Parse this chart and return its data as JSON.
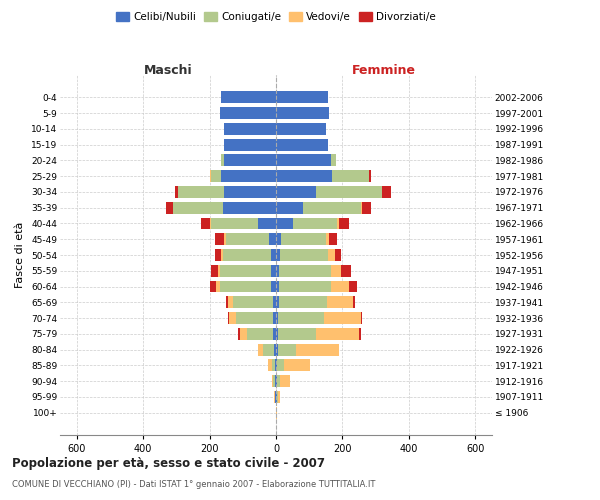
{
  "age_groups": [
    "100+",
    "95-99",
    "90-94",
    "85-89",
    "80-84",
    "75-79",
    "70-74",
    "65-69",
    "60-64",
    "55-59",
    "50-54",
    "45-49",
    "40-44",
    "35-39",
    "30-34",
    "25-29",
    "20-24",
    "15-19",
    "10-14",
    "5-9",
    "0-4"
  ],
  "birth_years": [
    "≤ 1906",
    "1907-1911",
    "1912-1916",
    "1917-1921",
    "1922-1926",
    "1927-1931",
    "1932-1936",
    "1937-1941",
    "1942-1946",
    "1947-1951",
    "1952-1956",
    "1957-1961",
    "1962-1966",
    "1967-1971",
    "1972-1976",
    "1977-1981",
    "1982-1986",
    "1987-1991",
    "1992-1996",
    "1997-2001",
    "2002-2006"
  ],
  "maschi": {
    "celibi": [
      0,
      2,
      3,
      3,
      5,
      8,
      10,
      10,
      15,
      15,
      15,
      20,
      55,
      160,
      155,
      165,
      155,
      155,
      155,
      170,
      165
    ],
    "coniugati": [
      0,
      2,
      5,
      10,
      35,
      80,
      110,
      120,
      155,
      155,
      145,
      130,
      140,
      150,
      140,
      30,
      10,
      0,
      0,
      0,
      0
    ],
    "vedovi": [
      0,
      2,
      5,
      10,
      15,
      20,
      20,
      15,
      10,
      5,
      5,
      5,
      5,
      0,
      0,
      5,
      0,
      0,
      0,
      0,
      0
    ],
    "divorziati": [
      0,
      0,
      0,
      0,
      0,
      5,
      5,
      5,
      20,
      20,
      20,
      30,
      25,
      20,
      10,
      0,
      0,
      0,
      0,
      0,
      0
    ]
  },
  "femmine": {
    "celibi": [
      0,
      2,
      3,
      3,
      5,
      5,
      5,
      8,
      10,
      10,
      12,
      15,
      50,
      80,
      120,
      170,
      165,
      155,
      150,
      160,
      155
    ],
    "coniugati": [
      0,
      3,
      8,
      20,
      55,
      115,
      140,
      145,
      155,
      155,
      145,
      135,
      135,
      175,
      200,
      110,
      15,
      0,
      0,
      0,
      0
    ],
    "vedovi": [
      2,
      8,
      30,
      80,
      130,
      130,
      110,
      80,
      55,
      30,
      20,
      10,
      5,
      5,
      0,
      0,
      0,
      0,
      0,
      0,
      0
    ],
    "divorziati": [
      0,
      0,
      0,
      0,
      0,
      5,
      5,
      5,
      25,
      30,
      20,
      25,
      30,
      25,
      25,
      5,
      0,
      0,
      0,
      0,
      0
    ]
  },
  "colors": {
    "celibi": "#4472c4",
    "coniugati": "#b3c98d",
    "vedovi": "#ffc06e",
    "divorziati": "#cc2222"
  },
  "xlim": 650,
  "title": "Popolazione per età, sesso e stato civile - 2007",
  "subtitle": "COMUNE DI VECCHIANO (PI) - Dati ISTAT 1° gennaio 2007 - Elaborazione TUTTITALIA.IT",
  "ylabel_left": "Fasce di età",
  "xlabel_left": "Maschi",
  "xlabel_right": "Femmine",
  "legend_labels": [
    "Celibi/Nubili",
    "Coniugati/e",
    "Vedovi/e",
    "Divorziati/e"
  ],
  "background_color": "#ffffff",
  "grid_color": "#cccccc",
  "maschi_color": "#333333",
  "femmine_color": "#cc2222"
}
